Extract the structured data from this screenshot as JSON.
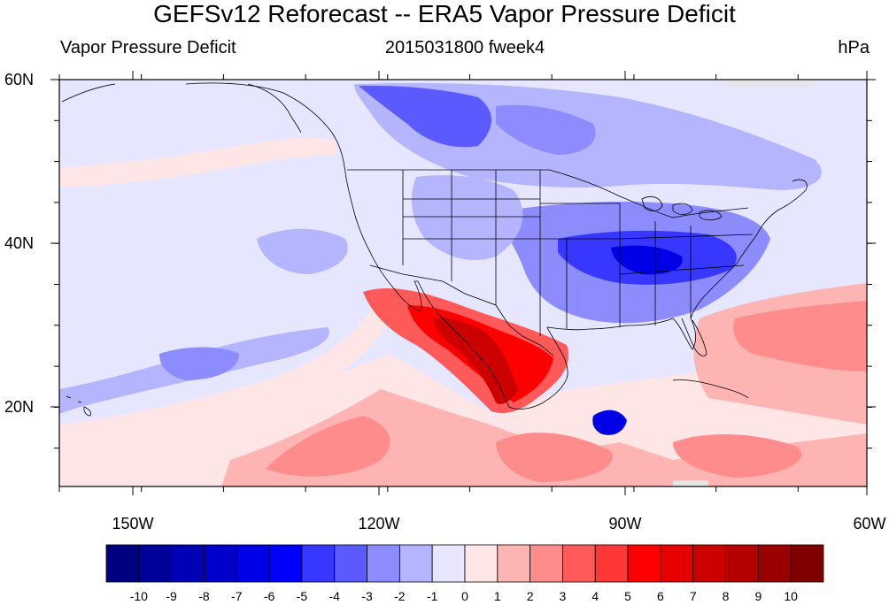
{
  "title": "GEFSv12 Reforecast -- ERA5 Vapor Pressure Deficit",
  "subtitle_left": "Vapor Pressure Deficit",
  "subtitle_center": "2015031800 fweek4",
  "subtitle_right": "hPa",
  "lat_labels": [
    "60N",
    "40N",
    "20N"
  ],
  "lon_labels": [
    "150W",
    "120W",
    "90W",
    "60W"
  ],
  "colorbar": {
    "labels": [
      "-10",
      "-9",
      "-8",
      "-7",
      "-6",
      "-5",
      "-4",
      "-3",
      "-2",
      "-1",
      "0",
      "1",
      "2",
      "3",
      "4",
      "5",
      "6",
      "7",
      "8",
      "9",
      "10"
    ],
    "colors": [
      "#000080",
      "#00009a",
      "#0000b4",
      "#0000cd",
      "#0000e6",
      "#0000ff",
      "#3737ff",
      "#5a5aff",
      "#8c8cff",
      "#b4b4ff",
      "#e6e6ff",
      "#ffe6e6",
      "#ffb4b4",
      "#ff8c8c",
      "#ff5a5a",
      "#ff3737",
      "#ff0000",
      "#e60000",
      "#cd0000",
      "#b40000",
      "#9a0000",
      "#800000"
    ]
  },
  "map": {
    "region": "North America / Central America, 10N–60N, 160W–60W",
    "colors": {
      "background": "#e6e6ff",
      "very_light_red": "#ffe6e6",
      "light_red": "#ffb4b4",
      "mid_red": "#ff8c8c",
      "red": "#ff5a5a",
      "strong_red": "#ff0000",
      "deep_red": "#cd0000",
      "light_blue": "#b4b4ff",
      "mid_blue": "#8c8cff",
      "blue": "#5a5aff",
      "strong_blue": "#3737ff",
      "deep_blue": "#0000e6",
      "missing": "#e6e6e6",
      "coast": "#000000"
    }
  }
}
